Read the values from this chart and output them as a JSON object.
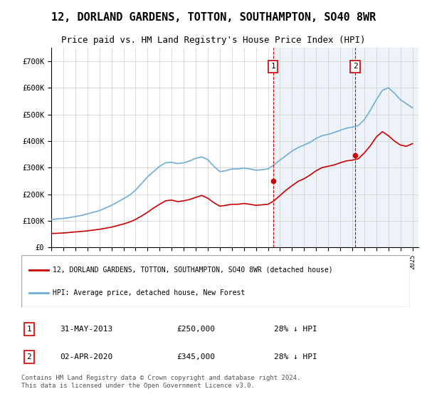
{
  "title": "12, DORLAND GARDENS, TOTTON, SOUTHAMPTON, SO40 8WR",
  "subtitle": "Price paid vs. HM Land Registry's House Price Index (HPI)",
  "legend_line1": "12, DORLAND GARDENS, TOTTON, SOUTHAMPTON, SO40 8WR (detached house)",
  "legend_line2": "HPI: Average price, detached house, New Forest",
  "footnote": "Contains HM Land Registry data © Crown copyright and database right 2024.\nThis data is licensed under the Open Government Licence v3.0.",
  "transaction1": {
    "label": "1",
    "date": "31-MAY-2013",
    "price": 250000,
    "note": "28% ↓ HPI"
  },
  "transaction2": {
    "label": "2",
    "date": "02-APR-2020",
    "price": 345000,
    "note": "28% ↓ HPI"
  },
  "hpi_color": "#6daed8",
  "price_color": "#cc0000",
  "vline_color": "#cc0000",
  "background_color": "#f0f4ff",
  "ylim": [
    0,
    750000
  ],
  "yticks": [
    0,
    100000,
    200000,
    300000,
    400000,
    500000,
    600000,
    700000
  ],
  "xlim_start": 1995.0,
  "xlim_end": 2025.5,
  "transaction1_x": 2013.42,
  "transaction2_x": 2020.25,
  "hpi_years": [
    1995,
    1995.5,
    1996,
    1996.5,
    1997,
    1997.5,
    1998,
    1998.5,
    1999,
    1999.5,
    2000,
    2000.5,
    2001,
    2001.5,
    2002,
    2002.5,
    2003,
    2003.5,
    2004,
    2004.5,
    2005,
    2005.5,
    2006,
    2006.5,
    2007,
    2007.5,
    2008,
    2008.5,
    2009,
    2009.5,
    2010,
    2010.5,
    2011,
    2011.5,
    2012,
    2012.5,
    2013,
    2013.5,
    2014,
    2014.5,
    2015,
    2015.5,
    2016,
    2016.5,
    2017,
    2017.5,
    2018,
    2018.5,
    2019,
    2019.5,
    2020,
    2020.5,
    2021,
    2021.5,
    2022,
    2022.5,
    2023,
    2023.5,
    2024,
    2024.5,
    2025
  ],
  "hpi_values": [
    105000,
    107000,
    109000,
    112000,
    116000,
    120000,
    126000,
    132000,
    138000,
    148000,
    158000,
    170000,
    183000,
    196000,
    215000,
    240000,
    265000,
    285000,
    305000,
    318000,
    320000,
    315000,
    318000,
    325000,
    335000,
    340000,
    330000,
    305000,
    285000,
    288000,
    295000,
    295000,
    298000,
    295000,
    290000,
    292000,
    295000,
    310000,
    328000,
    345000,
    362000,
    375000,
    385000,
    395000,
    410000,
    420000,
    425000,
    432000,
    440000,
    448000,
    452000,
    458000,
    480000,
    515000,
    555000,
    590000,
    600000,
    580000,
    555000,
    540000,
    525000
  ],
  "price_years": [
    1995,
    1995.5,
    1996,
    1996.5,
    1997,
    1997.5,
    1998,
    1998.5,
    1999,
    1999.5,
    2000,
    2000.5,
    2001,
    2001.5,
    2002,
    2002.5,
    2003,
    2003.5,
    2004,
    2004.5,
    2005,
    2005.5,
    2006,
    2006.5,
    2007,
    2007.5,
    2008,
    2008.5,
    2009,
    2009.5,
    2010,
    2010.5,
    2011,
    2011.5,
    2012,
    2012.5,
    2013,
    2013.5,
    2014,
    2014.5,
    2015,
    2015.5,
    2016,
    2016.5,
    2017,
    2017.5,
    2018,
    2018.5,
    2019,
    2019.5,
    2020,
    2020.5,
    2021,
    2021.5,
    2022,
    2022.5,
    2023,
    2023.5,
    2024,
    2024.5,
    2025
  ],
  "price_values": [
    52000,
    53000,
    54000,
    56000,
    58000,
    60000,
    62000,
    65000,
    68000,
    72000,
    76000,
    82000,
    88000,
    95000,
    105000,
    118000,
    132000,
    148000,
    162000,
    175000,
    178000,
    172000,
    175000,
    180000,
    188000,
    195000,
    185000,
    168000,
    155000,
    158000,
    162000,
    162000,
    165000,
    162000,
    158000,
    160000,
    162000,
    175000,
    195000,
    215000,
    232000,
    248000,
    258000,
    272000,
    288000,
    300000,
    305000,
    310000,
    318000,
    325000,
    328000,
    333000,
    355000,
    382000,
    415000,
    435000,
    420000,
    400000,
    385000,
    380000,
    390000
  ]
}
